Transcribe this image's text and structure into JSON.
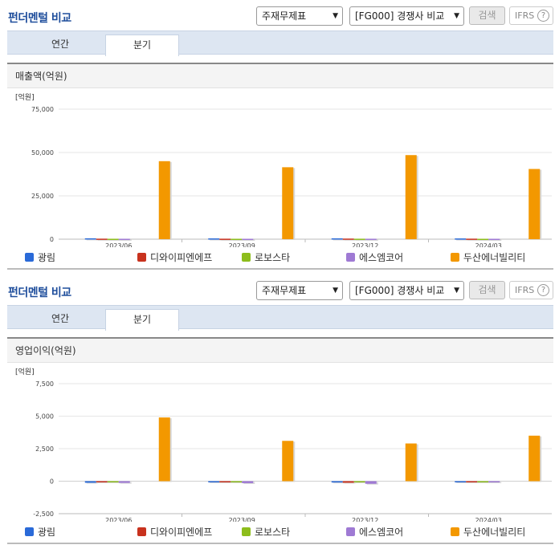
{
  "toolbar": {
    "title": "펀더멘털 비교",
    "statement_select": "주재무제표",
    "peer_select": "[FG000] 경쟁사 비교",
    "search_label": "검색",
    "ifrs_label": "IFRS",
    "help_label": "?"
  },
  "tabs": {
    "annual": "연간",
    "quarterly": "분기"
  },
  "legend": [
    {
      "name": "광림",
      "color": "#2a6ad8"
    },
    {
      "name": "디와이피엔에프",
      "color": "#c8321e"
    },
    {
      "name": "로보스타",
      "color": "#8dbd1c"
    },
    {
      "name": "에스엠코어",
      "color": "#9f7ad4"
    },
    {
      "name": "두산에너빌리티",
      "color": "#f39800"
    }
  ],
  "chart_data": [
    {
      "type": "bar",
      "title": "매출액(억원)",
      "unit": "[억원]",
      "categories": [
        "2023/06",
        "2023/09",
        "2023/12",
        "2024/03"
      ],
      "ylim": [
        0,
        75000
      ],
      "yticks": [
        0,
        25000,
        50000,
        75000
      ],
      "ytick_labels": [
        "0",
        "25,000",
        "50,000",
        "75,000"
      ],
      "series": [
        {
          "name": "광림",
          "values": [
            500,
            450,
            480,
            430
          ]
        },
        {
          "name": "디와이피엔에프",
          "values": [
            300,
            280,
            350,
            300
          ]
        },
        {
          "name": "로보스타",
          "values": [
            250,
            240,
            270,
            230
          ]
        },
        {
          "name": "에스엠코어",
          "values": [
            250,
            230,
            260,
            240
          ]
        },
        {
          "name": "두산에너빌리티",
          "values": [
            45000,
            41500,
            48500,
            40500
          ]
        }
      ]
    },
    {
      "type": "bar",
      "title": "영업이익(억원)",
      "unit": "[억원]",
      "categories": [
        "2023/06",
        "2023/09",
        "2023/12",
        "2024/03"
      ],
      "ylim": [
        -2500,
        7500
      ],
      "yticks": [
        -2500,
        0,
        2500,
        5000,
        7500
      ],
      "ytick_labels": [
        "-2,500",
        "0",
        "2,500",
        "5,000",
        "7,500"
      ],
      "series": [
        {
          "name": "광림",
          "values": [
            -120,
            -20,
            -100,
            -10
          ]
        },
        {
          "name": "디와이피엔에프",
          "values": [
            0,
            0,
            -120,
            -70
          ]
        },
        {
          "name": "로보스타",
          "values": [
            -20,
            -10,
            -20,
            -15
          ]
        },
        {
          "name": "에스엠코어",
          "values": [
            -130,
            -150,
            -200,
            -20
          ]
        },
        {
          "name": "두산에너빌리티",
          "values": [
            4900,
            3100,
            2900,
            3500
          ]
        }
      ]
    }
  ]
}
